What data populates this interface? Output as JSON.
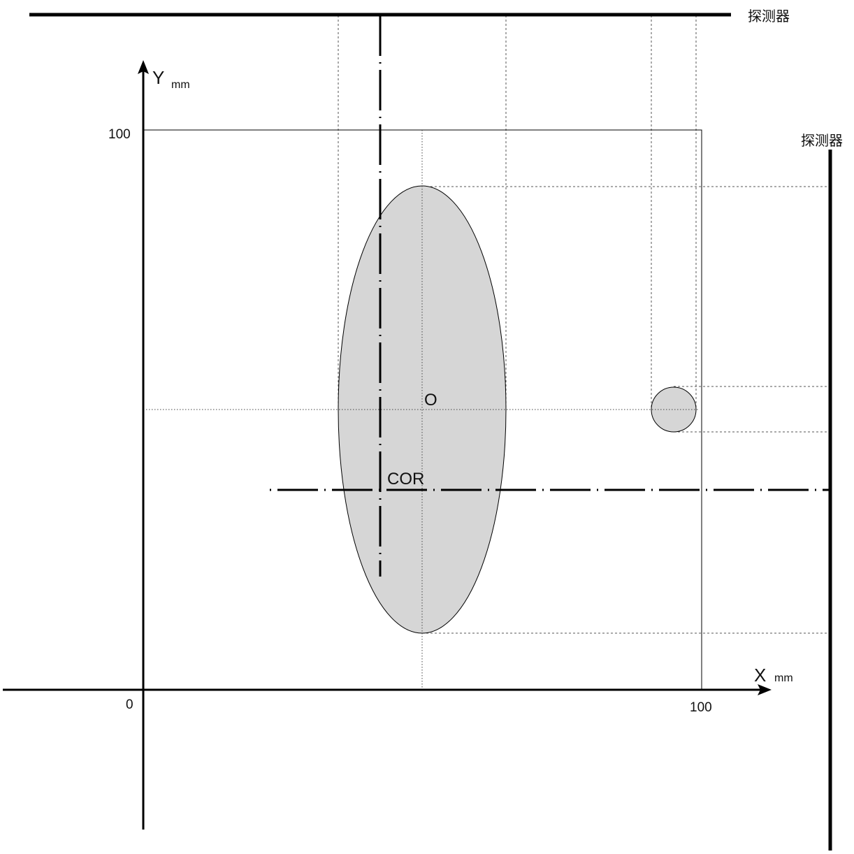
{
  "detectors": {
    "top_label": "探测器",
    "right_label": "探测器"
  },
  "axes": {
    "x": {
      "letter": "X",
      "unit": "mm",
      "max_tick": "100"
    },
    "y": {
      "letter": "Y",
      "unit": "mm",
      "max_tick": "100"
    },
    "origin_label": "0"
  },
  "labels": {
    "object_center": "O",
    "center_of_rotation": "COR"
  },
  "colors": {
    "line": "#000000",
    "object_fill": "#d6d6d6",
    "background": "#ffffff"
  }
}
